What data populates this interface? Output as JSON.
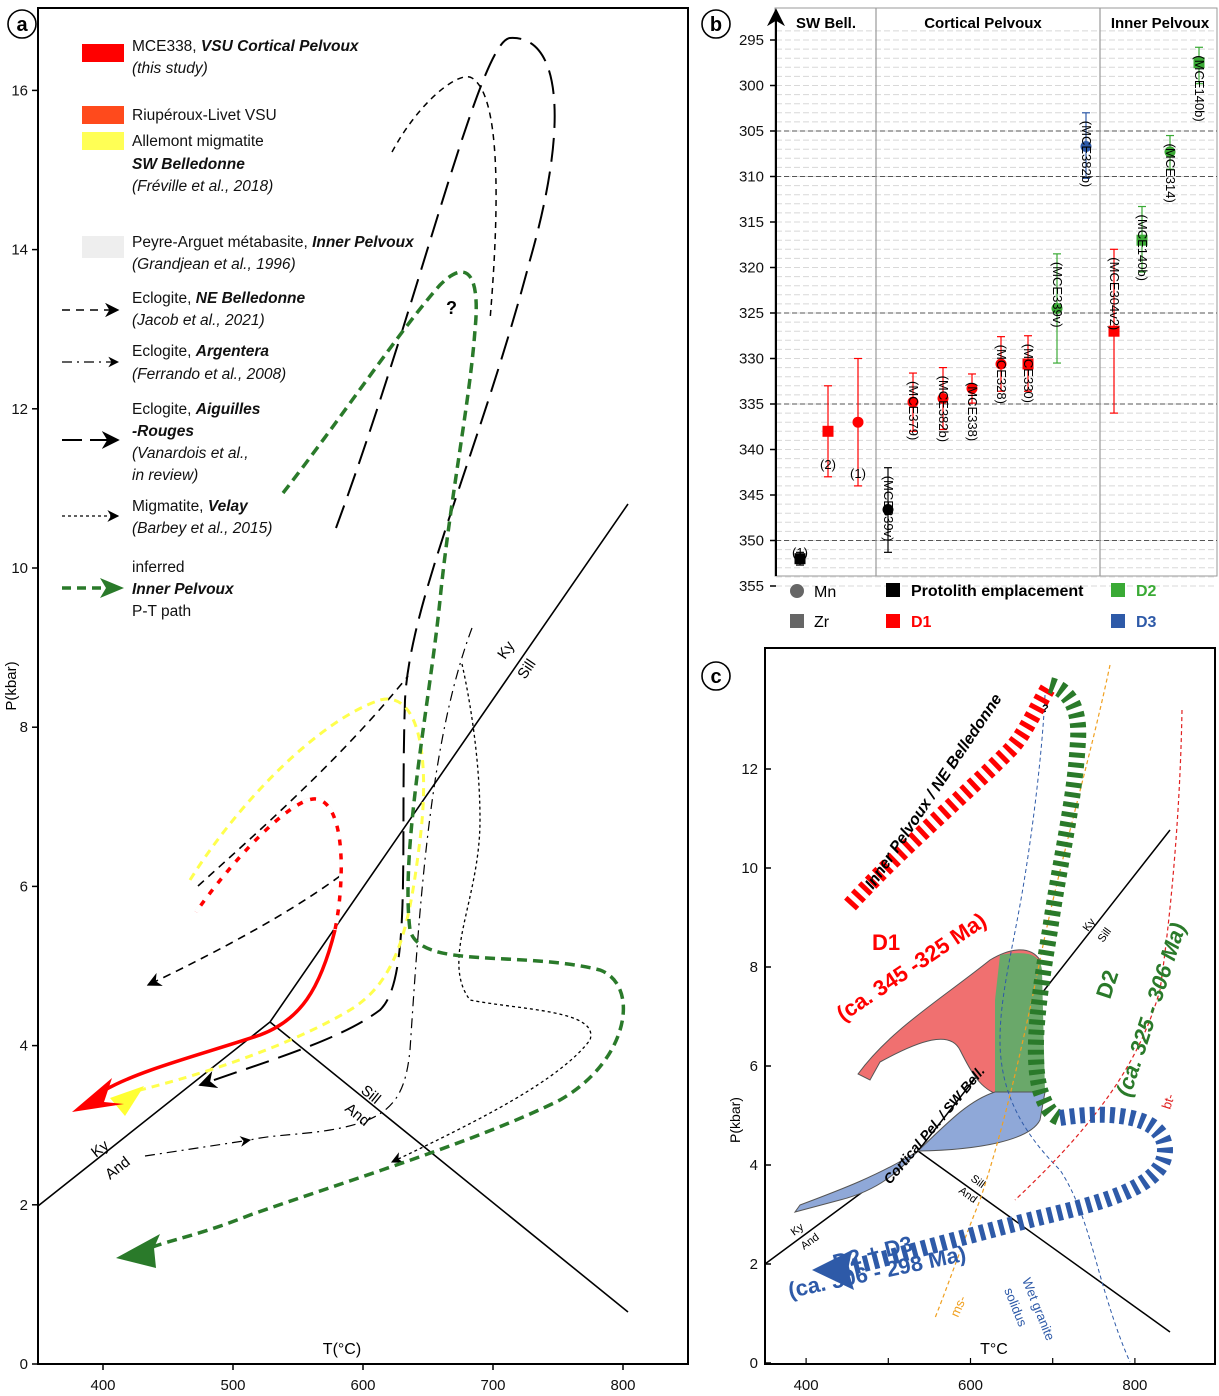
{
  "panel_a": {
    "badge": "a",
    "x_ticks": [
      "400",
      "500",
      "600",
      "700",
      "800"
    ],
    "y_ticks": [
      "0",
      "2",
      "4",
      "6",
      "8",
      "10",
      "12",
      "14",
      "16"
    ],
    "xlabel": "T(°C)",
    "ylabel": "P(kbar)",
    "legend": [
      {
        "name": "MCE338, ",
        "bold": "VSU Cortical Pelvoux",
        "ref": "(this study)",
        "color": "#ff0000"
      },
      {
        "name": "Riupéroux-Livet VSU",
        "color": "#ff4a1c"
      },
      {
        "name": "Allemont migmatite",
        "bold": "SW Belledonne",
        "ref": "(Fréville et al., 2018)",
        "color": "#ffff55"
      },
      {
        "name": "Peyre-Arguet métabasite, ",
        "bold": "Inner Pelvoux",
        "ref": "(Grandjean et al., 1996)",
        "color": "#eeeeee"
      },
      {
        "name": "Eclogite, ",
        "bold": "NE Belledonne",
        "ref": "(Jacob et al., 2021)"
      },
      {
        "name": "Eclogite, ",
        "bold": "Argentera",
        "ref": "(Ferrando et al., 2008)"
      },
      {
        "name": "Eclogite, ",
        "bold": "Aiguilles",
        "bold2": "-Rouges",
        "ref": "(Vanardois et al.,",
        "ref2": "in review)"
      },
      {
        "name": "Migmatite, ",
        "bold": "Velay",
        "ref": "(Barbey et al., 2015)"
      },
      {
        "name": "inferred",
        "bold": "Inner Pelvoux",
        "ref": "P-T path",
        "color": "#2a7a2a"
      }
    ],
    "labels": {
      "q": "?",
      "ky_sill_1": "Ky",
      "ky_sill_2": "Sill",
      "ky_and_1": "Ky",
      "ky_and_2": "And",
      "sill_and_1": "Sill",
      "sill_and_2": "And"
    }
  },
  "panel_b": {
    "badge": "b",
    "headers": [
      "SW Bell.",
      "Cortical Pelvoux",
      "Inner Pelvoux"
    ],
    "y_ticks": [
      "295",
      "300",
      "305",
      "310",
      "315",
      "320",
      "325",
      "330",
      "335",
      "340",
      "345",
      "350",
      "355"
    ],
    "legend": {
      "mn": "Mn",
      "zr": "Zr",
      "protolith": "Protolith emplacement",
      "d1": "D1",
      "d2": "D2",
      "d3": "D3"
    },
    "colors": {
      "protolith": "#000000",
      "d1": "#ff0000",
      "d2": "#3aaa35",
      "d3": "#2e5aa8"
    }
  },
  "chart_data": [
    {
      "type": "line",
      "title": "",
      "xlabel": "T(°C)",
      "ylabel": "P(kbar)",
      "xlim": [
        350,
        850
      ],
      "ylim": [
        0,
        17
      ],
      "series": [
        {
          "name": "MCE338, VSU Cortical Pelvoux (this study)",
          "x": [
            590,
            598,
            595,
            580,
            560,
            520,
            460,
            380
          ],
          "y": [
            7.0,
            6.6,
            5.8,
            5.0,
            4.5,
            4.0,
            3.7,
            3.1
          ]
        },
        {
          "name": "Allemont migmatite SW Belledonne (Fréville et al., 2018)",
          "x": [
            420,
            520,
            610,
            640,
            660,
            665,
            650,
            620,
            560,
            500,
            400
          ],
          "y": [
            6.0,
            7.6,
            8.4,
            8.3,
            7.8,
            6.5,
            5.0,
            4.6,
            4.1,
            3.7,
            3.2
          ]
        },
        {
          "name": "Eclogite, NE Belledonne (Jacob et al., 2021)",
          "x": [
            480,
            560,
            640,
            430
          ],
          "y": [
            5.7,
            7.2,
            8.2,
            4.8
          ]
        },
        {
          "name": "Eclogite, Argentera (Ferrando et al., 2008)",
          "x": [
            640,
            700,
            690,
            660,
            620,
            580,
            430
          ],
          "y": [
            8.3,
            12.0,
            10.5,
            7.0,
            4.6,
            3.8,
            2.6
          ]
        },
        {
          "name": "Eclogite, Aiguilles-Rouges (Vanardois et al., in review)",
          "x": [
            650,
            690,
            730,
            760,
            720,
            680,
            655,
            650,
            620,
            580,
            500
          ],
          "y": [
            10.5,
            14.2,
            16.6,
            15.8,
            12.8,
            9.5,
            7.5,
            4.5,
            4.0,
            3.8,
            3.5
          ]
        },
        {
          "name": "Migmatite, Velay (Barbey et al., 2015)",
          "x": [
            706,
            730,
            750,
            800,
            780,
            720,
            650
          ],
          "y": [
            8.8,
            6.0,
            4.6,
            4.3,
            3.6,
            3.4,
            2.5
          ]
        },
        {
          "name": "inferred Inner Pelvoux P-T path",
          "x": [
            600,
            650,
            700,
            708,
            690,
            670,
            690,
            780,
            840,
            800,
            650,
            420
          ],
          "y": [
            11.0,
            12.8,
            13.7,
            12.0,
            9.0,
            7.0,
            5.0,
            4.9,
            4.4,
            3.4,
            2.4,
            1.4
          ]
        },
        {
          "name": "Ky/Sill",
          "x": [
            540,
            850
          ],
          "y": [
            4.3,
            10.8
          ]
        },
        {
          "name": "Ky/And",
          "x": [
            350,
            540
          ],
          "y": [
            2.0,
            4.3
          ]
        },
        {
          "name": "Sill/And",
          "x": [
            540,
            850
          ],
          "y": [
            4.3,
            0.7
          ]
        }
      ]
    },
    {
      "type": "scatter",
      "title": "",
      "xlabel": "",
      "ylabel": "",
      "ylim": [
        356,
        293
      ],
      "categories": [
        "(1)",
        "(MCE339v)",
        "(2)",
        "(1)",
        "(MCE379)",
        "(MCE382b)",
        "(MCE338)",
        "(MCE328)",
        "(MCE330)",
        "(MCE339v)",
        "(MCE382b)",
        "(MCE304v2)",
        "(MCE140b)",
        "(MCE314)",
        "(MCE140b)"
      ],
      "groups": [
        "SW Bell.",
        "Cortical Pelvoux",
        "Inner Pelvoux"
      ],
      "points": [
        {
          "label": "(1)",
          "group": "SW Bell.",
          "phase": "Protolith emplacement",
          "method": "Zr",
          "age": 352.0,
          "low": 351.3,
          "high": 352.7
        },
        {
          "label": "(MCE339v)",
          "group": "Cortical Pelvoux",
          "phase": "Protolith emplacement",
          "method": "Mn",
          "age": 346.6,
          "low": 342.0,
          "high": 351.3
        },
        {
          "label": "(2)",
          "group": "SW Bell.",
          "phase": "D1",
          "method": "Zr",
          "age": 338.0,
          "low": 333.0,
          "high": 343.0
        },
        {
          "label": "(1)",
          "group": "SW Bell.",
          "phase": "D1",
          "method": "Mn",
          "age": 337.0,
          "low": 330.0,
          "high": 344.0
        },
        {
          "label": "(MCE379)",
          "group": "Cortical Pelvoux",
          "phase": "D1",
          "method": "Mn",
          "age": 334.8,
          "low": 331.6,
          "high": 338.0
        },
        {
          "label": "(MCE382b)",
          "group": "Cortical Pelvoux",
          "phase": "D1",
          "method": "Mn",
          "age": 334.4,
          "low": 331.0,
          "high": 337.8
        },
        {
          "label": "(MCE338)",
          "group": "Cortical Pelvoux",
          "phase": "D1",
          "method": "Mn",
          "age": 333.3,
          "low": 331.7,
          "high": 334.9
        },
        {
          "label": "(MCE328)",
          "group": "Cortical Pelvoux",
          "phase": "D1",
          "method": "Mn",
          "age": 330.6,
          "low": 327.6,
          "high": 333.6
        },
        {
          "label": "(MCE330)",
          "group": "Cortical Pelvoux",
          "phase": "D1",
          "method": "Zr",
          "age": 330.6,
          "low": 327.5,
          "high": 333.6
        },
        {
          "label": "(MCE339v)",
          "group": "Cortical Pelvoux",
          "phase": "D2",
          "method": "Mn",
          "age": 324.5,
          "low": 318.5,
          "high": 330.5
        },
        {
          "label": "(MCE382b)",
          "group": "Cortical Pelvoux",
          "phase": "D3",
          "method": "Mn",
          "age": 306.7,
          "low": 303.0,
          "high": 310.2
        },
        {
          "label": "(MCE304v2)",
          "group": "Inner Pelvoux",
          "phase": "D1",
          "method": "Zr",
          "age": 327.0,
          "low": 318.0,
          "high": 336.0
        },
        {
          "label": "(MCE140b)",
          "group": "Inner Pelvoux",
          "phase": "D2",
          "method": "Zr",
          "age": 317.0,
          "low": 313.3,
          "high": 320.5
        },
        {
          "label": "(MCE314)",
          "group": "Inner Pelvoux",
          "phase": "D2",
          "method": "Mn",
          "age": 307.3,
          "low": 305.5,
          "high": 309.2
        },
        {
          "label": "(MCE140b)",
          "group": "Inner Pelvoux",
          "phase": "D2",
          "method": "Zr",
          "age": 297.5,
          "low": 295.8,
          "high": 299.8
        }
      ],
      "dashed_lines": [
        305,
        310,
        325,
        335,
        350
      ]
    },
    {
      "type": "line",
      "title": "",
      "xlabel": "T°C",
      "ylabel": "P(kbar)",
      "xlim": [
        350,
        880
      ],
      "ylim": [
        0,
        14.5
      ],
      "series": [
        {
          "name": "Inner Pelvoux / NE Belledonne",
          "x": [
            475,
            540,
            620,
            690
          ],
          "y": [
            9.4,
            11.0,
            12.5,
            13.8
          ]
        },
        {
          "name": "D2 (ca. 325 - 306 Ma)",
          "x": [
            690,
            720,
            730,
            710,
            690,
            700,
            750,
            800,
            840
          ],
          "y": [
            13.8,
            13.1,
            11.0,
            8.0,
            5.0,
            3.3,
            3.2,
            3.4,
            4.4
          ]
        },
        {
          "name": "D2 + D3 (ca. 306 - 298 Ma)",
          "x": [
            840,
            800,
            700,
            600,
            480,
            410
          ],
          "y": [
            4.4,
            3.6,
            2.8,
            2.3,
            1.6,
            1.0
          ]
        },
        {
          "name": "ms-",
          "x": [
            560,
            600,
            650,
            700,
            730,
            760
          ],
          "y": [
            1.0,
            2.0,
            4.0,
            7.0,
            10.0,
            13.0
          ]
        },
        {
          "name": "bt-",
          "x": [
            660,
            720,
            800,
            850,
            860
          ],
          "y": [
            3.0,
            3.4,
            4.5,
            8.0,
            13.0
          ]
        },
        {
          "name": "Wet granite solidus",
          "x": [
            605,
            620,
            650,
            700,
            750
          ],
          "y": [
            13.5,
            9.0,
            5.0,
            2.5,
            0.0
          ]
        },
        {
          "name": "Ky/Sill",
          "x": [
            540,
            850
          ],
          "y": [
            4.3,
            10.8
          ]
        },
        {
          "name": "Ky/And",
          "x": [
            350,
            540
          ],
          "y": [
            2.0,
            4.3
          ]
        },
        {
          "name": "Sill/And",
          "x": [
            540,
            850
          ],
          "y": [
            4.3,
            1.0
          ]
        }
      ],
      "x_ticks": [
        "400",
        "600",
        "800"
      ],
      "y_ticks": [
        "0",
        "2",
        "4",
        "6",
        "8",
        "10",
        "12"
      ]
    }
  ],
  "panel_c": {
    "badge": "c",
    "xlabel": "T°C",
    "ylabel": "P(kbar)",
    "labels": {
      "inner": "Inner Pelvoux / NE Belledonne",
      "d1_title": "D1",
      "d1_age": "(ca. 345 -325 Ma)",
      "d2_title": "D2",
      "d2_age": "(ca. 325 - 306 Ma)",
      "d23_title": "D2 + D3",
      "d23_age": "(ca. 306 - 298 Ma)",
      "cortical": "Cortical Pel. / SW Bell.",
      "ms": "ms-",
      "bt": "bt-",
      "solidus_1": "Wet granite",
      "solidus_2": "solidus",
      "q": "?",
      "ky_sill_1": "Ky",
      "ky_sill_2": "Sill",
      "ky_and_1": "Ky",
      "ky_and_2": "And",
      "sill_and_1": "Sill",
      "sill_and_2": "And"
    }
  }
}
